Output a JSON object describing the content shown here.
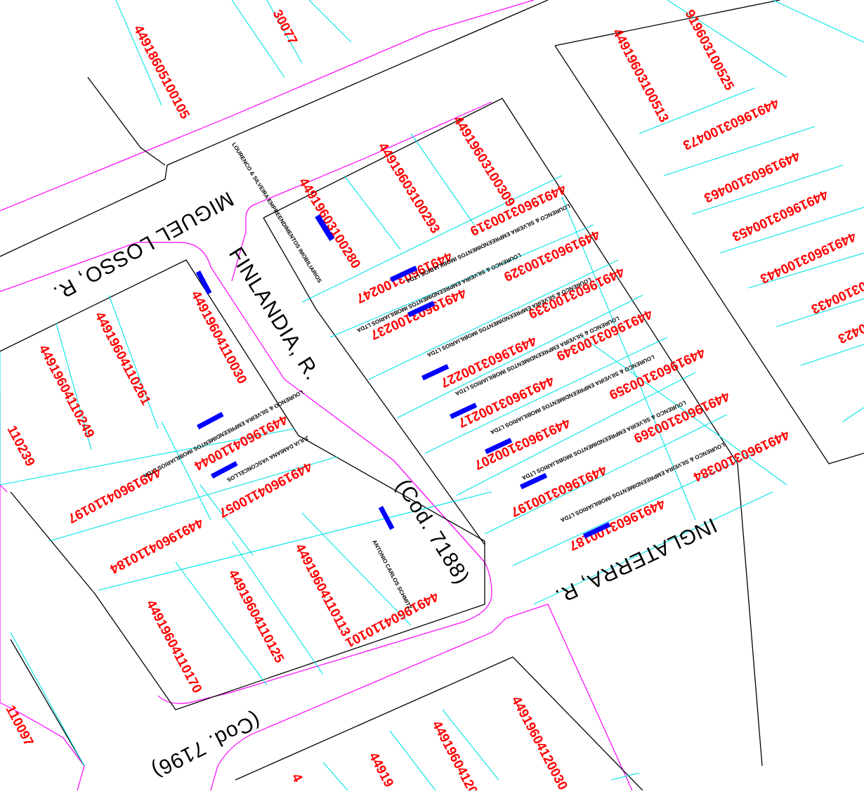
{
  "colors": {
    "background": "#ffffff",
    "block": "#000000",
    "lot_line": "#00e5e5",
    "street_curb": "#ff00ff",
    "lot_number": "#ff0000",
    "street_name": "#000000",
    "owner_text": "#000000",
    "info_text": "#0000ff"
  },
  "streets": [
    {
      "id": "miguel-losso",
      "name": "MIGUEL LOSSO, R."
    },
    {
      "id": "finlandia",
      "name": "FINLANDIA, R."
    },
    {
      "id": "finlandia-code",
      "name": "(Cod. 7188)"
    },
    {
      "id": "inglaterra",
      "name": "INGLATERRA, R."
    },
    {
      "id": "inglaterra-code",
      "name": "(Cod. 7196)"
    }
  ],
  "lots": [
    {
      "id": "a1",
      "number": "30077"
    },
    {
      "id": "a2",
      "number": "44918605100105"
    },
    {
      "id": "a3",
      "number": "91960310052​5"
    },
    {
      "id": "a4",
      "number": "44919603100513"
    },
    {
      "id": "a5",
      "number": "44919603100473"
    },
    {
      "id": "a6",
      "number": "44919603100463"
    },
    {
      "id": "a7",
      "number": "44919603100453"
    },
    {
      "id": "a8",
      "number": "44919603100443"
    },
    {
      "id": "a9",
      "number": "03100433"
    },
    {
      "id": "a10",
      "number": "0423"
    },
    {
      "id": "b1",
      "number": "44919603100309"
    },
    {
      "id": "b2",
      "number": "44919603100293"
    },
    {
      "id": "b3",
      "number": "44919603100280"
    },
    {
      "id": "b4",
      "number": "44919603100319"
    },
    {
      "id": "b5",
      "number": "44919603100247"
    },
    {
      "id": "b6",
      "number": "44919603100329"
    },
    {
      "id": "b7",
      "number": "44919603100237"
    },
    {
      "id": "b8",
      "number": "44919603100339"
    },
    {
      "id": "b9",
      "number": "44919603100227"
    },
    {
      "id": "b10",
      "number": "44919603100349"
    },
    {
      "id": "b11",
      "number": "44919603100217"
    },
    {
      "id": "b12",
      "number": "44919603100359"
    },
    {
      "id": "b13",
      "number": "44919603100207"
    },
    {
      "id": "b14",
      "number": "44919603100369"
    },
    {
      "id": "b15",
      "number": "44919603100197"
    },
    {
      "id": "b16",
      "number": "44919603100384"
    },
    {
      "id": "b17",
      "number": "44919603100187"
    },
    {
      "id": "c1",
      "number": "44919604110030"
    },
    {
      "id": "c2",
      "number": "44919604110261"
    },
    {
      "id": "c3",
      "number": "44919604110249"
    },
    {
      "id": "c4",
      "number": "110239"
    },
    {
      "id": "c5",
      "number": "44919604110044"
    },
    {
      "id": "c6",
      "number": "44919604110197"
    },
    {
      "id": "c7",
      "number": "44919604110057"
    },
    {
      "id": "c8",
      "number": "44919604110184"
    },
    {
      "id": "c9",
      "number": "44919604110101"
    },
    {
      "id": "c10",
      "number": "44919604110113"
    },
    {
      "id": "c11",
      "number": "44919604110125"
    },
    {
      "id": "c12",
      "number": "44919604110170"
    },
    {
      "id": "c13",
      "number": "110097"
    },
    {
      "id": "d1",
      "number": "44919604120030"
    },
    {
      "id": "d2",
      "number": "44919604120"
    },
    {
      "id": "d3",
      "number": "44919"
    },
    {
      "id": "d4",
      "number": "4"
    }
  ],
  "owners": [
    "LOURENCO & SILVEIRA EMPREENDIMENTOS IMOBILIARIOS",
    "LOURENCO & SILVEIRA EMPREENDIMENTOS IMOBILIARIOS LTDA",
    "JULIA DAMIANA VASCONCELLOS",
    "ANTONIO CARLOS SCHMITZ"
  ]
}
